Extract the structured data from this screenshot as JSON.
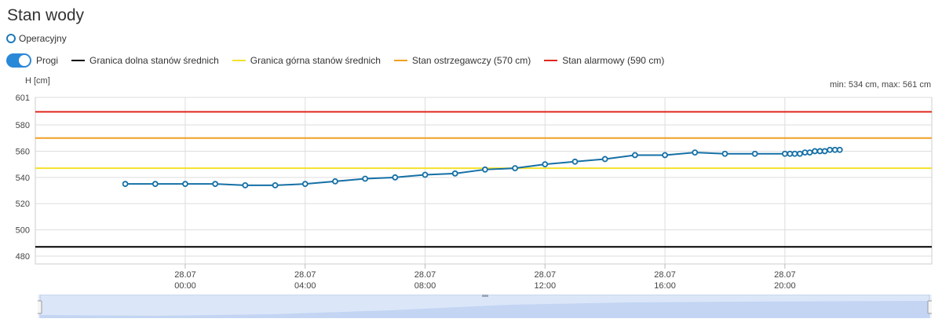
{
  "page": {
    "title": "Stan wody"
  },
  "mode": {
    "label": "Operacyjny"
  },
  "thresholds": {
    "toggle_label": "Progi",
    "items": [
      {
        "label": "Granica dolna stanów średnich",
        "color": "#000000"
      },
      {
        "label": "Granica górna stanów średnich",
        "color": "#f2e12b"
      },
      {
        "label": "Stan ostrzegawczy (570 cm)",
        "color": "#f0a020"
      },
      {
        "label": "Stan alarmowy (590 cm)",
        "color": "#e0261e"
      }
    ]
  },
  "chart_data": {
    "type": "line",
    "ylabel": "H [cm]",
    "summary": "min: 534 cm, max: 561 cm",
    "ylim": [
      474,
      601
    ],
    "yticks": [
      480,
      500,
      520,
      540,
      560,
      580,
      601
    ],
    "xlim_hours": [
      -5.0,
      24.9
    ],
    "xticks": [
      {
        "hour": 0,
        "date": "28.07",
        "time": "00:00"
      },
      {
        "hour": 4,
        "date": "28.07",
        "time": "04:00"
      },
      {
        "hour": 8,
        "date": "28.07",
        "time": "08:00"
      },
      {
        "hour": 12,
        "date": "28.07",
        "time": "12:00"
      },
      {
        "hour": 16,
        "date": "28.07",
        "time": "16:00"
      },
      {
        "hour": 20,
        "date": "28.07",
        "time": "20:00"
      }
    ],
    "threshold_levels": [
      {
        "name": "Granica dolna stanów średnich",
        "value": 487,
        "color": "#000000"
      },
      {
        "name": "Granica górna stanów średnich",
        "value": 547,
        "color": "#f2e12b"
      },
      {
        "name": "Stan ostrzegawczy (570 cm)",
        "value": 570,
        "color": "#f0a020"
      },
      {
        "name": "Stan alarmowy (590 cm)",
        "value": 590,
        "color": "#e0261e"
      }
    ],
    "series": [
      {
        "color": "#1570a6",
        "points": [
          [
            -2,
            535
          ],
          [
            -1,
            535
          ],
          [
            0,
            535
          ],
          [
            1,
            535
          ],
          [
            2,
            534
          ],
          [
            3,
            534
          ],
          [
            4,
            535
          ],
          [
            5,
            537
          ],
          [
            6,
            539
          ],
          [
            7,
            540
          ],
          [
            8,
            542
          ],
          [
            9,
            543
          ],
          [
            10,
            546
          ],
          [
            11,
            547
          ],
          [
            12,
            550
          ],
          [
            13,
            552
          ],
          [
            14,
            554
          ],
          [
            15,
            557
          ],
          [
            16,
            557
          ],
          [
            17,
            559
          ],
          [
            18,
            558
          ],
          [
            19,
            558
          ],
          [
            20,
            558
          ],
          [
            20.17,
            558
          ],
          [
            20.33,
            558
          ],
          [
            20.5,
            558
          ],
          [
            20.67,
            559
          ],
          [
            20.83,
            559
          ],
          [
            21,
            560
          ],
          [
            21.17,
            560
          ],
          [
            21.33,
            560
          ],
          [
            21.5,
            561
          ],
          [
            21.67,
            561
          ],
          [
            21.83,
            561
          ]
        ]
      }
    ],
    "grid": true
  }
}
